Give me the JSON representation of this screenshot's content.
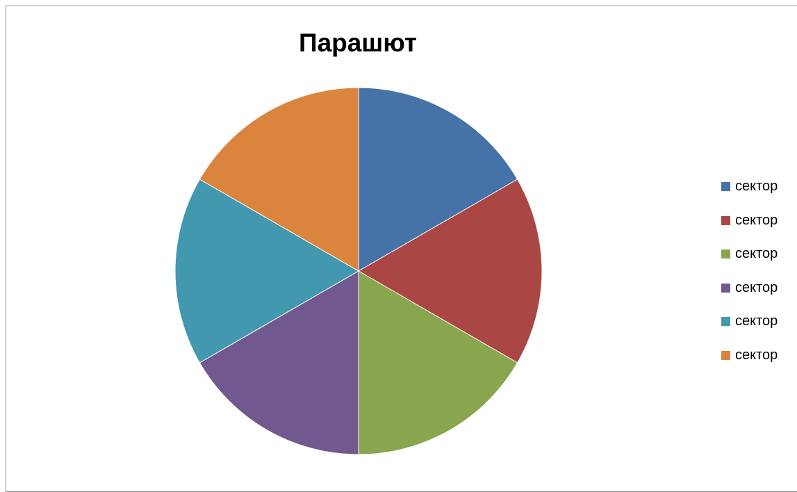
{
  "chart_data": {
    "type": "pie",
    "title": "Парашют",
    "categories": [
      "сектор",
      "сектор",
      "сектор",
      "сектор",
      "сектор",
      "сектор"
    ],
    "values": [
      1,
      1,
      1,
      1,
      1,
      1
    ],
    "colors": [
      "#4572A7",
      "#AA4643",
      "#89A54E",
      "#71588F",
      "#4198AF",
      "#DB843D"
    ],
    "start_angle_deg": 0,
    "direction": "clockwise",
    "legend_position": "right"
  }
}
